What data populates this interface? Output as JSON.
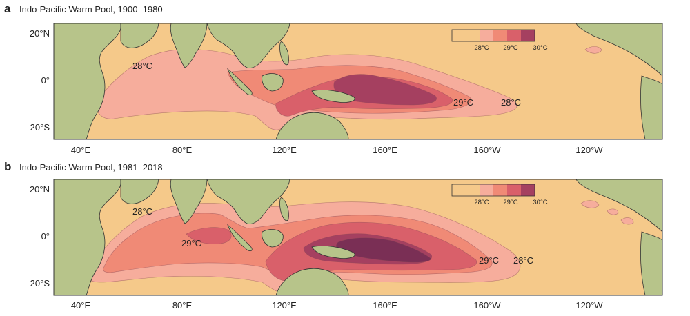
{
  "colors": {
    "ocean": "#f5c98a",
    "land": "#b7c48a",
    "land_dark": "#93a86c",
    "land_light": "#d6d3a0",
    "band_28": "#f6ad9c",
    "band_28_5": "#f08a76",
    "band_29": "#d9606a",
    "band_29_5": "#a54060",
    "band_30": "#7a2f55",
    "contour_line": "#8a4a55"
  },
  "axes": {
    "lat_labels": [
      "20°N",
      "0°",
      "20°S"
    ],
    "lon_labels": [
      "40°E",
      "80°E",
      "120°E",
      "160°E",
      "160°W",
      "120°W"
    ]
  },
  "colorbar": {
    "labels": [
      "28°C",
      "29°C",
      "30°C"
    ]
  },
  "panels": [
    {
      "letter": "a",
      "title": "Indo-Pacific Warm Pool, 1900–1980",
      "contour_labels": [
        {
          "text": "28°C",
          "pos": "indian-ocean-north"
        },
        {
          "text": "29°C",
          "pos": "pacific-east"
        },
        {
          "text": "28°C",
          "pos": "pacific-far-east"
        }
      ]
    },
    {
      "letter": "b",
      "title": "Indo-Pacific Warm Pool, 1981–2018",
      "contour_labels": [
        {
          "text": "28°C",
          "pos": "indian-ocean-north"
        },
        {
          "text": "29°C",
          "pos": "indian-ocean-center"
        },
        {
          "text": "29°C",
          "pos": "pacific-east"
        },
        {
          "text": "28°C",
          "pos": "pacific-far-east"
        }
      ]
    }
  ]
}
